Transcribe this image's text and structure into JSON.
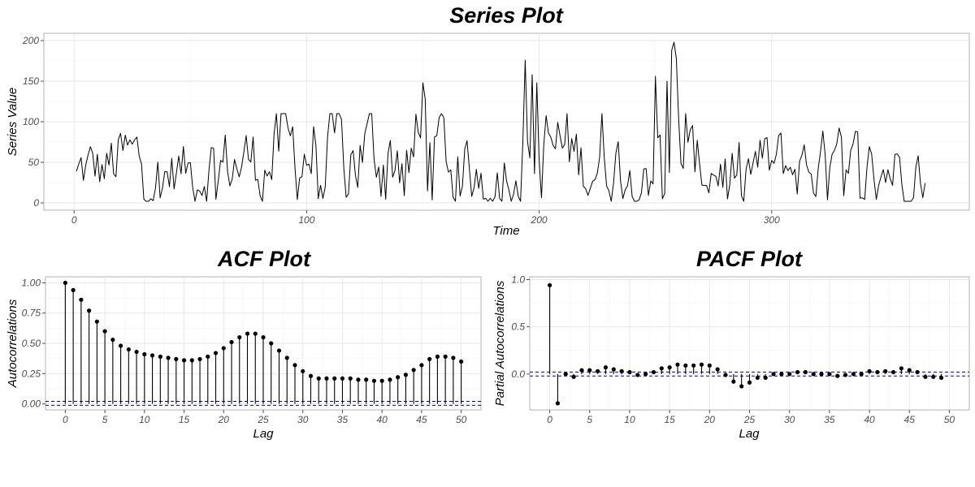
{
  "chart_data": [
    {
      "id": "series",
      "type": "line",
      "title": "Series Plot",
      "xlabel": "Time",
      "ylabel": "Series Value",
      "xlim": [
        -13,
        385
      ],
      "ylim": [
        -9,
        209
      ],
      "xticks": [
        0,
        100,
        200,
        300
      ],
      "yticks": [
        0,
        50,
        100,
        150,
        200
      ],
      "grid": true,
      "n": 366,
      "range": [
        2,
        199
      ]
    },
    {
      "id": "acf",
      "type": "lollipop",
      "title": "ACF Plot",
      "xlabel": "Lag",
      "ylabel": "Autocorrelations",
      "xlim": [
        -2.5,
        52.5
      ],
      "ylim": [
        -0.05,
        1.05
      ],
      "xticks": [
        0,
        5,
        10,
        15,
        20,
        25,
        30,
        35,
        40,
        45,
        50
      ],
      "yticks": [
        0.0,
        0.25,
        0.5,
        0.75,
        1.0
      ],
      "ytick_labels": [
        "0.00",
        "0.25",
        "0.50",
        "0.75",
        "1.00"
      ],
      "grid": true,
      "conf_band": [
        -0.0124,
        0.0207
      ],
      "lags": [
        0,
        1,
        2,
        3,
        4,
        5,
        6,
        7,
        8,
        9,
        10,
        11,
        12,
        13,
        14,
        15,
        16,
        17,
        18,
        19,
        20,
        21,
        22,
        23,
        24,
        25,
        26,
        27,
        28,
        29,
        30,
        31,
        32,
        33,
        34,
        35,
        36,
        37,
        38,
        39,
        40,
        41,
        42,
        43,
        44,
        45,
        46,
        47,
        48,
        49,
        50
      ],
      "values": [
        1.0,
        0.94,
        0.86,
        0.77,
        0.68,
        0.6,
        0.53,
        0.48,
        0.45,
        0.43,
        0.41,
        0.4,
        0.39,
        0.38,
        0.37,
        0.36,
        0.36,
        0.37,
        0.39,
        0.42,
        0.46,
        0.51,
        0.55,
        0.58,
        0.58,
        0.55,
        0.5,
        0.44,
        0.38,
        0.32,
        0.27,
        0.23,
        0.21,
        0.21,
        0.21,
        0.21,
        0.21,
        0.2,
        0.2,
        0.19,
        0.19,
        0.2,
        0.22,
        0.24,
        0.28,
        0.32,
        0.37,
        0.39,
        0.39,
        0.38,
        0.35
      ]
    },
    {
      "id": "pacf",
      "type": "lollipop",
      "title": "PACF Plot",
      "xlabel": "Lag",
      "ylabel": "Partial Autocorrelations",
      "xlim": [
        -2.5,
        52.5
      ],
      "ylim": [
        -0.38,
        1.03
      ],
      "xticks": [
        0,
        5,
        10,
        15,
        20,
        25,
        30,
        35,
        40,
        45,
        50
      ],
      "yticks": [
        0.0,
        0.5,
        1.0
      ],
      "ytick_labels": [
        "0.0",
        "0.5",
        "1.0"
      ],
      "grid": true,
      "conf_band": [
        -0.0207,
        0.0207
      ],
      "lags": [
        0,
        1,
        2,
        3,
        4,
        5,
        6,
        7,
        8,
        9,
        10,
        11,
        12,
        13,
        14,
        15,
        16,
        17,
        18,
        19,
        20,
        21,
        22,
        23,
        24,
        25,
        26,
        27,
        28,
        29,
        30,
        31,
        32,
        33,
        34,
        35,
        36,
        37,
        38,
        39,
        40,
        41,
        42,
        43,
        44,
        45,
        46,
        47,
        48,
        49
      ],
      "values": [
        0.94,
        -0.31,
        0.0,
        -0.03,
        0.04,
        0.04,
        0.03,
        0.07,
        0.05,
        0.03,
        0.02,
        -0.01,
        0.0,
        0.02,
        0.06,
        0.07,
        0.1,
        0.09,
        0.09,
        0.1,
        0.09,
        0.05,
        -0.01,
        -0.08,
        -0.13,
        -0.09,
        -0.04,
        -0.04,
        0.0,
        0.0,
        0.0,
        0.02,
        0.02,
        0.0,
        0.0,
        0.0,
        -0.02,
        -0.01,
        0.0,
        0.0,
        0.03,
        0.02,
        0.03,
        0.02,
        0.06,
        0.04,
        0.02,
        -0.03,
        -0.03,
        -0.04
      ]
    }
  ]
}
